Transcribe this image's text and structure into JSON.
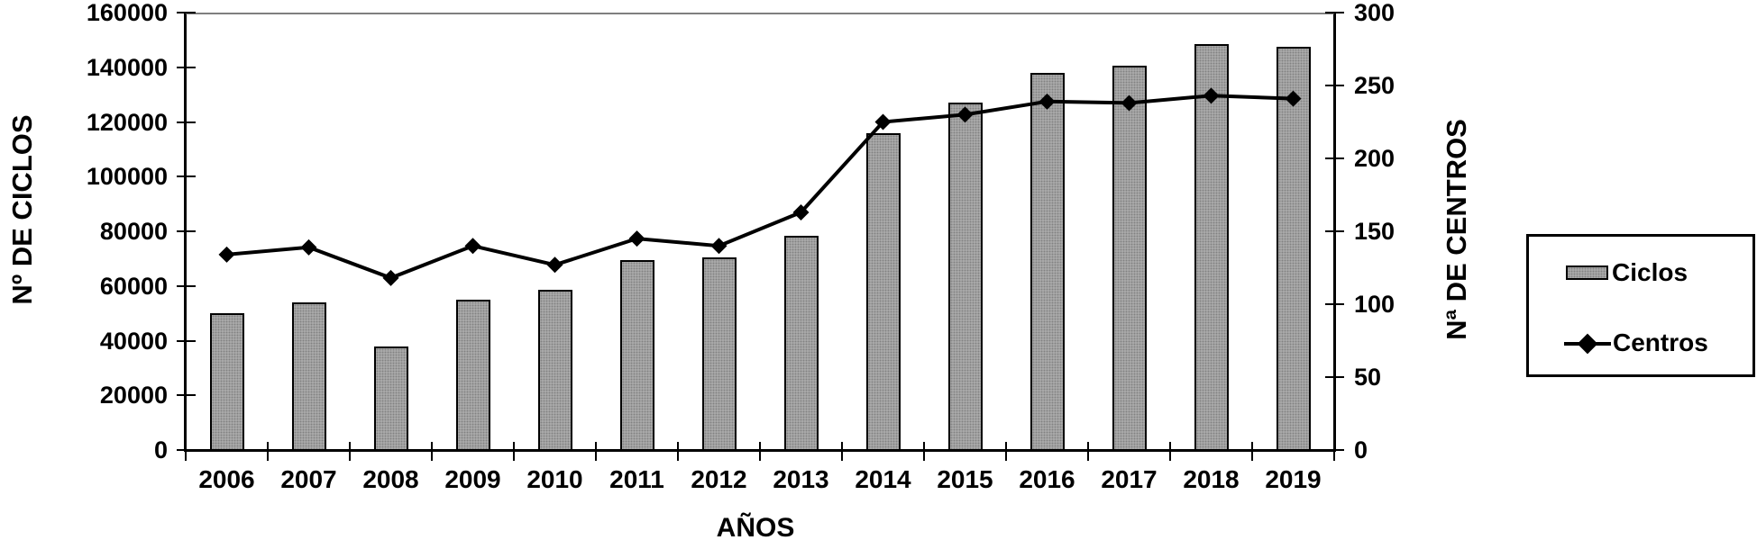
{
  "chart_data": {
    "type": "bar",
    "title": "",
    "categories": [
      "2006",
      "2007",
      "2008",
      "2009",
      "2010",
      "2011",
      "2012",
      "2013",
      "2014",
      "2015",
      "2016",
      "2017",
      "2018",
      "2019"
    ],
    "series": [
      {
        "name": "Ciclos",
        "type": "bar",
        "yaxis": "left",
        "values": [
          50000,
          54000,
          38000,
          55000,
          58500,
          69500,
          70500,
          78500,
          116000,
          127000,
          138000,
          140500,
          148500,
          147500
        ]
      },
      {
        "name": "Centros",
        "type": "line",
        "marker": "diamond",
        "yaxis": "right",
        "values": [
          134,
          139,
          118,
          140,
          127,
          145,
          140,
          163,
          225,
          230,
          239,
          238,
          243,
          241
        ]
      }
    ],
    "xlabel": "AÑOS",
    "left_axis": {
      "label": "Nº DE CICLOS",
      "min": 0,
      "max": 160000,
      "step": 20000
    },
    "right_axis": {
      "label": "Nª DE CENTROS",
      "min": 0,
      "max": 300,
      "step": 50
    },
    "legend_position": "right",
    "grid": false,
    "colors": {
      "bar_fill": "#b0b0b0",
      "bar_border": "#000000",
      "line": "#000000",
      "marker": "#000000",
      "frame_top": "#7f7f7f"
    }
  }
}
